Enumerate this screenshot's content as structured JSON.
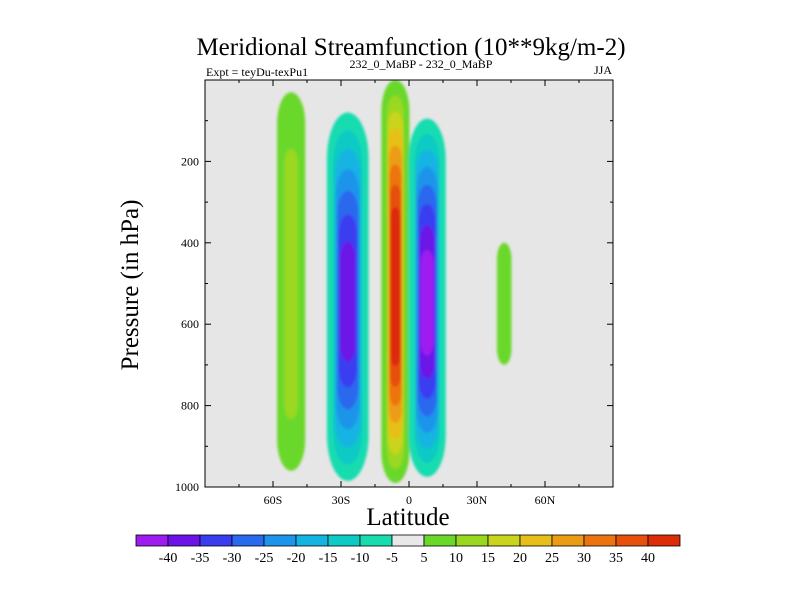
{
  "chart_data": {
    "type": "contour",
    "title": "Meridional Streamfunction (10**9kg/m-2)",
    "left_string": "Expt = teyDu-texPu1",
    "center_string": "232_0_MaBP - 232_0_MaBP",
    "right_string": "JJA",
    "xlabel": "Latitude",
    "ylabel": "Pressure (in hPa)",
    "xlim": [
      -90,
      90
    ],
    "ylim": [
      1000,
      0
    ],
    "x_ticks": [
      {
        "value": -60,
        "label": "60S"
      },
      {
        "value": -30,
        "label": "30S"
      },
      {
        "value": 0,
        "label": "0"
      },
      {
        "value": 30,
        "label": "30N"
      },
      {
        "value": 60,
        "label": "60N"
      }
    ],
    "y_ticks": [
      {
        "value": 200,
        "label": "200"
      },
      {
        "value": 400,
        "label": "400"
      },
      {
        "value": 600,
        "label": "600"
      },
      {
        "value": 800,
        "label": "800"
      },
      {
        "value": 1000,
        "label": "1000"
      }
    ],
    "background_color": "#e6e6e6",
    "colorbar": {
      "levels": [
        -40,
        -35,
        -30,
        -25,
        -20,
        -15,
        -10,
        -5,
        5,
        10,
        15,
        20,
        25,
        30,
        35,
        40
      ],
      "labels": [
        "-40",
        "-35",
        "-30",
        "-25",
        "-20",
        "-15",
        "-10",
        "-5",
        "5",
        "10",
        "15",
        "20",
        "25",
        "30",
        "35",
        "40"
      ],
      "colors": [
        "#9e1cf0",
        "#6c14e8",
        "#3a3cf0",
        "#2a68ee",
        "#1b94ea",
        "#12b4e2",
        "#0ccac4",
        "#16dcb0",
        "#e8e8e8",
        "#6ad82a",
        "#9ad820",
        "#cad41c",
        "#e6c018",
        "#ec9c14",
        "#ec7410",
        "#e6500c",
        "#dc2c08"
      ]
    },
    "features": [
      {
        "name": "southern-ferrel-cell-positive",
        "lat_center": -52,
        "lat_halfwidth": 4,
        "p_top": 30,
        "p_bottom": 960,
        "peak_value": 10
      },
      {
        "name": "southern-subtropical-negative",
        "lat_center": -27,
        "lat_halfwidth": 7,
        "p_top": 80,
        "p_bottom": 985,
        "peak_value": -35
      },
      {
        "name": "equatorial-positive-plume",
        "lat_center": -6,
        "lat_halfwidth": 4,
        "p_top": 0,
        "p_bottom": 990,
        "peak_value": 45
      },
      {
        "name": "northern-tropical-negative",
        "lat_center": 8,
        "lat_halfwidth": 6,
        "p_top": 95,
        "p_bottom": 975,
        "peak_value": -40
      },
      {
        "name": "northern-midlatitude-positive",
        "lat_center": 42,
        "lat_halfwidth": 1,
        "p_top": 400,
        "p_bottom": 700,
        "peak_value": 5
      }
    ]
  }
}
